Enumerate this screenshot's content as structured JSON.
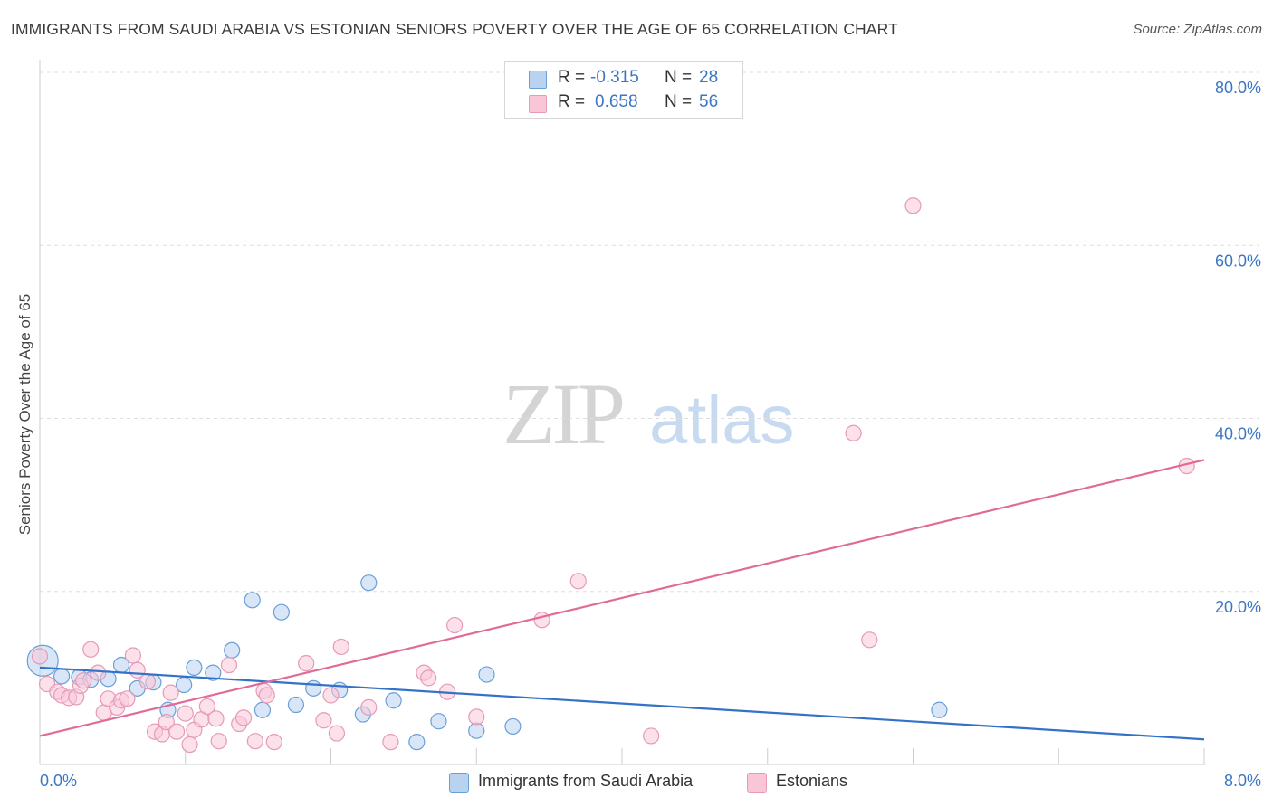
{
  "chart_data": {
    "type": "scatter",
    "title": "IMMIGRANTS FROM SAUDI ARABIA VS ESTONIAN SENIORS POVERTY OVER THE AGE OF 65 CORRELATION CHART",
    "source": "Source: ZipAtlas.com",
    "ylabel": "Seniors Poverty Over the Age of 65",
    "xlabel": "",
    "xlim": [
      0,
      8
    ],
    "ylim": [
      0,
      80
    ],
    "x_tick_labels": [
      "0.0%",
      "8.0%"
    ],
    "y_ticks": [
      20,
      40,
      60,
      80
    ],
    "y_tick_labels": [
      "20.0%",
      "40.0%",
      "60.0%",
      "80.0%"
    ],
    "grid": true,
    "watermark": "ZIPatlas",
    "stats": [
      {
        "r_label": "R =",
        "r_value": "-0.315",
        "n_label": "N =",
        "n_value": "28"
      },
      {
        "r_label": "R =",
        "r_value": "0.658",
        "n_label": "N =",
        "n_value": "56"
      }
    ],
    "series": [
      {
        "name": "Immigrants from Saudi Arabia",
        "color": "#6a9fd8",
        "fill": "#b8d2f0",
        "line_color": "#3472c8",
        "trend": {
          "x": [
            0,
            8
          ],
          "y": [
            11.2,
            2.9
          ]
        },
        "points": [
          [
            0.02,
            12.0
          ],
          [
            0.15,
            10.2
          ],
          [
            0.27,
            10.1
          ],
          [
            0.35,
            9.8
          ],
          [
            0.47,
            9.9
          ],
          [
            0.56,
            11.5
          ],
          [
            0.67,
            8.8
          ],
          [
            0.78,
            9.5
          ],
          [
            0.88,
            6.3
          ],
          [
            0.99,
            9.2
          ],
          [
            1.06,
            11.2
          ],
          [
            1.19,
            10.6
          ],
          [
            1.32,
            13.2
          ],
          [
            1.46,
            19.0
          ],
          [
            1.53,
            6.3
          ],
          [
            1.66,
            17.6
          ],
          [
            1.76,
            6.9
          ],
          [
            1.88,
            8.8
          ],
          [
            2.06,
            8.6
          ],
          [
            2.22,
            5.8
          ],
          [
            2.26,
            21.0
          ],
          [
            2.43,
            7.4
          ],
          [
            2.59,
            2.6
          ],
          [
            2.74,
            5.0
          ],
          [
            3.0,
            3.9
          ],
          [
            3.07,
            10.4
          ],
          [
            3.25,
            4.4
          ],
          [
            6.18,
            6.3
          ]
        ]
      },
      {
        "name": "Estonians",
        "color": "#e69ab6",
        "fill": "#f9c6d8",
        "line_color": "#e06b99",
        "trend": {
          "x": [
            0,
            8
          ],
          "y": [
            3.3,
            35.2
          ]
        },
        "points": [
          [
            0.05,
            9.3
          ],
          [
            0.12,
            8.4
          ],
          [
            0.15,
            8.0
          ],
          [
            0.2,
            7.7
          ],
          [
            0.25,
            7.8
          ],
          [
            0.28,
            9.1
          ],
          [
            0.3,
            9.7
          ],
          [
            0.35,
            13.3
          ],
          [
            0.4,
            10.6
          ],
          [
            0.44,
            6.0
          ],
          [
            0.47,
            7.6
          ],
          [
            0.53,
            6.6
          ],
          [
            0.56,
            7.4
          ],
          [
            0.6,
            7.6
          ],
          [
            0.64,
            12.6
          ],
          [
            0.67,
            10.9
          ],
          [
            0.74,
            9.6
          ],
          [
            0.79,
            3.8
          ],
          [
            0.84,
            3.5
          ],
          [
            0.87,
            4.9
          ],
          [
            0.9,
            8.3
          ],
          [
            0.94,
            3.8
          ],
          [
            1.0,
            5.9
          ],
          [
            1.03,
            2.3
          ],
          [
            1.06,
            4.0
          ],
          [
            1.11,
            5.2
          ],
          [
            1.15,
            6.7
          ],
          [
            1.21,
            5.3
          ],
          [
            1.23,
            2.7
          ],
          [
            1.3,
            11.5
          ],
          [
            1.37,
            4.7
          ],
          [
            1.4,
            5.4
          ],
          [
            1.48,
            2.7
          ],
          [
            1.54,
            8.5
          ],
          [
            1.56,
            8.0
          ],
          [
            1.61,
            2.6
          ],
          [
            1.83,
            11.7
          ],
          [
            1.95,
            5.1
          ],
          [
            2.0,
            8.0
          ],
          [
            2.04,
            3.6
          ],
          [
            2.07,
            13.6
          ],
          [
            2.26,
            6.6
          ],
          [
            2.41,
            2.6
          ],
          [
            2.64,
            10.6
          ],
          [
            2.67,
            10.0
          ],
          [
            2.8,
            8.4
          ],
          [
            2.85,
            16.1
          ],
          [
            3.0,
            5.5
          ],
          [
            3.45,
            16.7
          ],
          [
            3.7,
            21.2
          ],
          [
            4.2,
            3.3
          ],
          [
            5.59,
            38.3
          ],
          [
            5.7,
            14.4
          ],
          [
            6.0,
            64.6
          ],
          [
            7.88,
            34.5
          ],
          [
            0.0,
            12.5
          ]
        ]
      }
    ]
  }
}
